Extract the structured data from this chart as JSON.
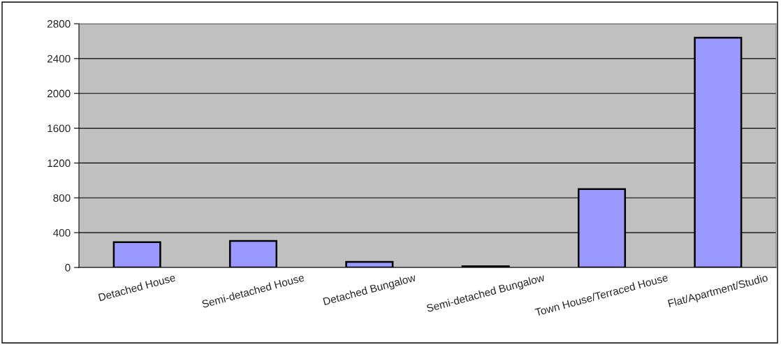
{
  "chart_data": {
    "type": "bar",
    "categories": [
      "Detached House",
      "Semi-detached House",
      "Detached Bungalow",
      "Semi-detached Bungalow",
      "Town House/Terraced House",
      "Flat/Apartment/Studio"
    ],
    "values": [
      290,
      305,
      65,
      15,
      900,
      2640
    ],
    "color": "#9999ff",
    "ylim": [
      0,
      2800
    ],
    "yticks": [
      0,
      400,
      800,
      1200,
      1600,
      2000,
      2400,
      2800
    ],
    "grid": "y",
    "legend": false
  }
}
